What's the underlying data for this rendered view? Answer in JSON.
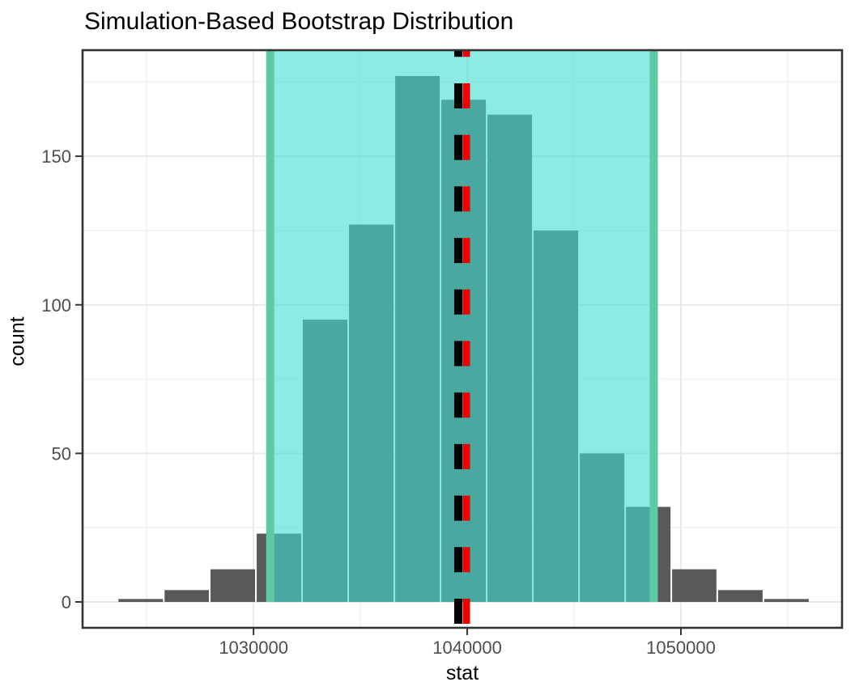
{
  "chart_data": {
    "type": "bar",
    "subtype": "histogram",
    "title": "Simulation-Based Bootstrap Distribution",
    "xlabel": "stat",
    "ylabel": "count",
    "legend": "none",
    "grid": "on",
    "xlim": [
      1022000,
      1057540
    ],
    "ylim": [
      -8.7,
      185.7
    ],
    "x_ticks": [
      {
        "value": 1030000,
        "label": "1030000"
      },
      {
        "value": 1040000,
        "label": "1040000"
      },
      {
        "value": 1050000,
        "label": "1050000"
      }
    ],
    "y_ticks": [
      {
        "value": 0,
        "label": "0"
      },
      {
        "value": 50,
        "label": "50"
      },
      {
        "value": 100,
        "label": "100"
      },
      {
        "value": 150,
        "label": "150"
      }
    ],
    "x_minor_ticks": [
      1025000,
      1035000,
      1045000,
      1055000
    ],
    "y_minor_ticks": [
      25,
      75,
      125,
      175
    ],
    "bins": {
      "edges": [
        1023640,
        1025800,
        1027950,
        1030110,
        1032270,
        1034430,
        1036590,
        1038750,
        1040910,
        1043070,
        1045230,
        1047390,
        1049550,
        1051700,
        1053860,
        1056020
      ],
      "counts": [
        1,
        4,
        11,
        23,
        95,
        127,
        177,
        169,
        164,
        125,
        50,
        32,
        11,
        4,
        1
      ]
    },
    "confidence_interval": {
      "lower": 1030780,
      "upper": 1048730
    },
    "observed_stat_line": {
      "value": 1039960,
      "style": "dashed"
    },
    "mean_line": {
      "value": 1039580,
      "style": "dashed"
    },
    "colors": {
      "bar_fill": "#595959",
      "bar_gap": "#ffffff",
      "ci_fill": "#40E0D0",
      "ci_fill_opacity": 0.6,
      "ci_line": "#5CCBA3",
      "observed_line": "#EE0000",
      "mean_line": "#000000",
      "grid_major": "#E9E9E9",
      "grid_minor": "#F2F2F2",
      "panel_border": "#333333",
      "tick_mark": "#333333",
      "tick_label": "#4D4D4D",
      "title_color": "#000000"
    }
  }
}
